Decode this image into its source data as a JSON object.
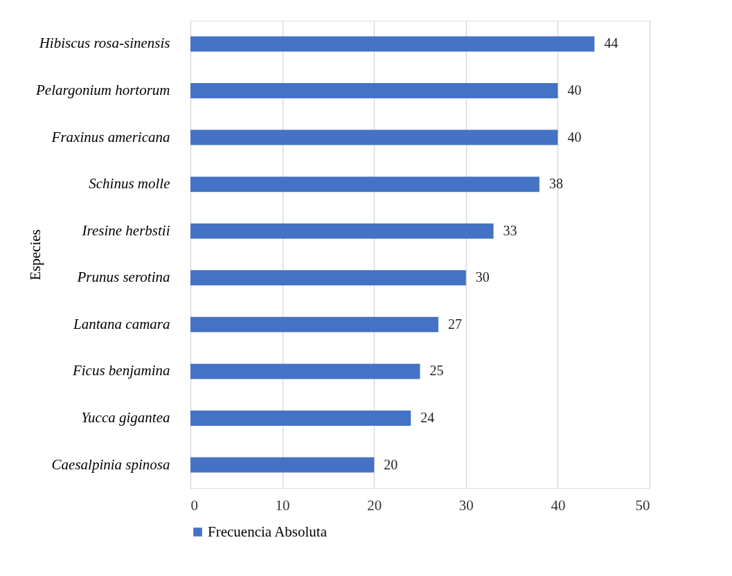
{
  "chart_data": {
    "type": "bar",
    "orientation": "horizontal",
    "ylabel": "Especies",
    "categories": [
      "Hibiscus rosa-sinensis",
      "Pelargonium  hortorum",
      "Fraxinus americana",
      "Schinus molle",
      "Iresine herbstii",
      "Prunus serotina",
      "Lantana camara",
      "Ficus benjamina",
      "Yucca gigantea",
      "Caesalpinia spinosa"
    ],
    "series": [
      {
        "name": "Frecuencia Absoluta",
        "color": "#4472c4",
        "values": [
          44,
          40,
          40,
          38,
          33,
          30,
          27,
          25,
          24,
          20
        ]
      }
    ],
    "xlim": [
      0,
      50
    ],
    "xticks": [
      0,
      10,
      20,
      30,
      40,
      50
    ],
    "grid": "x",
    "legend": "bottom",
    "data_labels": true
  }
}
